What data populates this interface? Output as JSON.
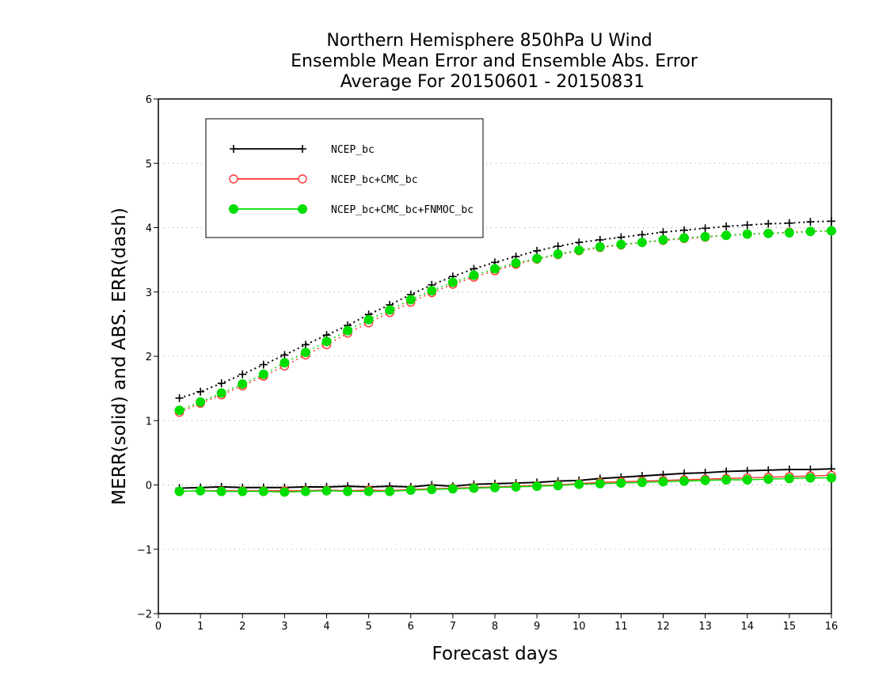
{
  "chart_data": {
    "type": "line",
    "title": [
      "Northern Hemisphere 850hPa U Wind",
      "Ensemble Mean Error and Ensemble Abs. Error",
      "Average For 20150601 - 20150831"
    ],
    "xlabel": "Forecast days",
    "ylabel": "MERR(solid) and ABS. ERR(dash)",
    "xlim": [
      0,
      16
    ],
    "ylim": [
      -2,
      6
    ],
    "xticks": [
      0,
      1,
      2,
      3,
      4,
      5,
      6,
      7,
      8,
      9,
      10,
      11,
      12,
      13,
      14,
      15,
      16
    ],
    "yticks": [
      -2,
      -1,
      0,
      1,
      2,
      3,
      4,
      5,
      6
    ],
    "grid": "horizontal dotted",
    "legend_position": "top-left",
    "x": [
      0.5,
      1,
      1.5,
      2,
      2.5,
      3,
      3.5,
      4,
      4.5,
      5,
      5.5,
      6,
      6.5,
      7,
      7.5,
      8,
      8.5,
      9,
      9.5,
      10,
      10.5,
      11,
      11.5,
      12,
      12.5,
      13,
      13.5,
      14,
      14.5,
      15,
      15.5,
      16
    ],
    "series": [
      {
        "name": "NCEP_bc",
        "color": "#000000",
        "marker": "plus",
        "merr": [
          -0.05,
          -0.04,
          -0.03,
          -0.04,
          -0.04,
          -0.04,
          -0.03,
          -0.03,
          -0.02,
          -0.03,
          -0.02,
          -0.03,
          0.0,
          -0.02,
          0.01,
          0.02,
          0.03,
          0.04,
          0.06,
          0.07,
          0.1,
          0.12,
          0.14,
          0.16,
          0.18,
          0.19,
          0.21,
          0.22,
          0.23,
          0.24,
          0.24,
          0.25
        ],
        "abs_err": [
          1.35,
          1.45,
          1.58,
          1.72,
          1.87,
          2.02,
          2.18,
          2.33,
          2.48,
          2.65,
          2.8,
          2.96,
          3.11,
          3.24,
          3.36,
          3.46,
          3.55,
          3.64,
          3.71,
          3.77,
          3.81,
          3.85,
          3.89,
          3.93,
          3.96,
          3.99,
          4.02,
          4.04,
          4.06,
          4.07,
          4.09,
          4.1
        ]
      },
      {
        "name": "NCEP_bc+CMC_bc",
        "color": "#ff3333",
        "marker": "open-circle",
        "merr": [
          -0.1,
          -0.09,
          -0.09,
          -0.09,
          -0.09,
          -0.09,
          -0.09,
          -0.08,
          -0.09,
          -0.08,
          -0.09,
          -0.07,
          -0.06,
          -0.05,
          -0.04,
          -0.03,
          -0.02,
          -0.01,
          0.0,
          0.02,
          0.04,
          0.05,
          0.06,
          0.07,
          0.08,
          0.09,
          0.1,
          0.11,
          0.12,
          0.13,
          0.14,
          0.15
        ],
        "abs_err": [
          1.13,
          1.27,
          1.4,
          1.54,
          1.69,
          1.85,
          2.02,
          2.18,
          2.36,
          2.52,
          2.68,
          2.84,
          2.99,
          3.12,
          3.23,
          3.33,
          3.43,
          3.51,
          3.58,
          3.64,
          3.69,
          3.73,
          3.77,
          3.8,
          3.83,
          3.85,
          3.88,
          3.9,
          3.91,
          3.93,
          3.94,
          3.95
        ]
      },
      {
        "name": "NCEP_bc+CMC_bc+FNMOC_bc",
        "color": "#00dd00",
        "marker": "filled-circle",
        "merr": [
          -0.1,
          -0.09,
          -0.1,
          -0.1,
          -0.1,
          -0.11,
          -0.1,
          -0.09,
          -0.1,
          -0.1,
          -0.1,
          -0.08,
          -0.07,
          -0.06,
          -0.05,
          -0.04,
          -0.03,
          -0.02,
          -0.01,
          0.01,
          0.02,
          0.03,
          0.04,
          0.05,
          0.06,
          0.07,
          0.08,
          0.08,
          0.09,
          0.1,
          0.11,
          0.11
        ],
        "abs_err": [
          1.16,
          1.29,
          1.43,
          1.57,
          1.72,
          1.9,
          2.06,
          2.23,
          2.4,
          2.57,
          2.72,
          2.88,
          3.02,
          3.15,
          3.26,
          3.36,
          3.45,
          3.52,
          3.59,
          3.65,
          3.7,
          3.74,
          3.77,
          3.81,
          3.84,
          3.86,
          3.88,
          3.9,
          3.91,
          3.92,
          3.94,
          3.95
        ]
      }
    ]
  }
}
